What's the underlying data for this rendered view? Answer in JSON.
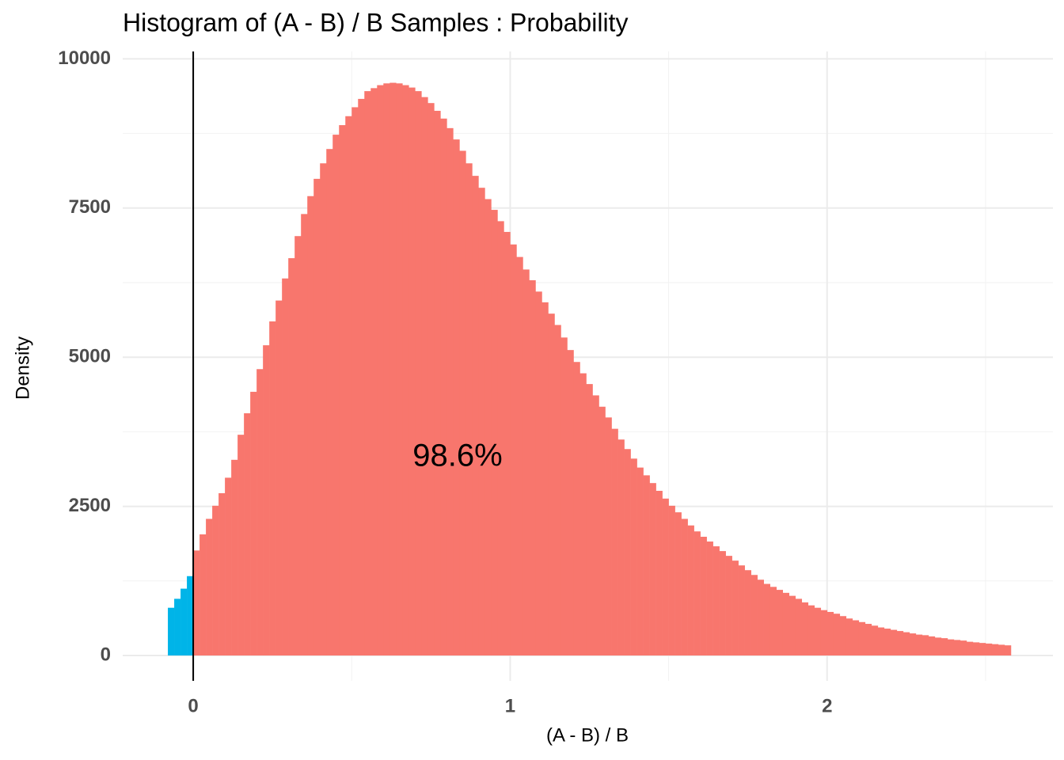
{
  "chart_data": {
    "type": "histogram",
    "title": "Histogram of (A - B) / B Samples : Probability",
    "xlabel": "(A - B) / B",
    "ylabel": "Density",
    "annotation": "98.6%",
    "series": [
      {
        "color": "#00b4e8",
        "bins": [
          -0.08,
          -0.06,
          -0.04,
          -0.02,
          0
        ],
        "values": [
          800,
          950,
          1120,
          1330
        ]
      },
      {
        "color": "#f8766d",
        "bins": [
          0,
          0.02,
          0.04,
          0.06,
          0.08,
          0.1,
          0.12,
          0.14,
          0.16,
          0.18,
          0.2,
          0.22,
          0.24,
          0.26,
          0.28,
          0.3,
          0.32,
          0.34,
          0.36,
          0.38,
          0.4,
          0.42,
          0.44,
          0.46,
          0.48,
          0.5,
          0.52,
          0.54,
          0.56,
          0.58,
          0.6,
          0.62,
          0.64,
          0.66,
          0.68,
          0.7,
          0.72,
          0.74,
          0.76,
          0.78,
          0.8,
          0.82,
          0.84,
          0.86,
          0.88,
          0.9,
          0.92,
          0.94,
          0.96,
          0.98,
          1,
          1.02,
          1.04,
          1.06,
          1.08,
          1.1,
          1.12,
          1.14,
          1.16,
          1.18,
          1.2,
          1.22,
          1.24,
          1.26,
          1.28,
          1.3,
          1.32,
          1.34,
          1.36,
          1.38,
          1.4,
          1.42,
          1.44,
          1.46,
          1.48,
          1.5,
          1.52,
          1.54,
          1.56,
          1.58,
          1.6,
          1.62,
          1.64,
          1.66,
          1.68,
          1.7,
          1.72,
          1.74,
          1.76,
          1.78,
          1.8,
          1.82,
          1.84,
          1.86,
          1.88,
          1.9,
          1.92,
          1.94,
          1.96,
          1.98,
          2,
          2.02,
          2.04,
          2.06,
          2.08,
          2.1,
          2.12,
          2.14,
          2.16,
          2.18,
          2.2,
          2.22,
          2.24,
          2.26,
          2.28,
          2.3,
          2.32,
          2.34,
          2.36,
          2.38,
          2.4,
          2.42,
          2.44,
          2.46,
          2.48,
          2.5,
          2.52,
          2.54,
          2.56,
          2.58
        ],
        "values": [
          1760,
          2030,
          2290,
          2510,
          2720,
          2980,
          3280,
          3700,
          4060,
          4420,
          4800,
          5200,
          5600,
          5950,
          6320,
          6660,
          7030,
          7400,
          7700,
          7990,
          8250,
          8490,
          8730,
          8890,
          9040,
          9190,
          9330,
          9460,
          9510,
          9560,
          9590,
          9600,
          9590,
          9560,
          9520,
          9460,
          9360,
          9260,
          9130,
          9000,
          8840,
          8650,
          8460,
          8250,
          8040,
          7840,
          7650,
          7470,
          7280,
          7100,
          6890,
          6680,
          6470,
          6290,
          6100,
          5920,
          5730,
          5540,
          5330,
          5120,
          4920,
          4730,
          4550,
          4360,
          4170,
          3990,
          3800,
          3620,
          3460,
          3300,
          3150,
          3020,
          2890,
          2760,
          2630,
          2510,
          2400,
          2290,
          2180,
          2080,
          1990,
          1910,
          1830,
          1750,
          1670,
          1590,
          1510,
          1430,
          1350,
          1270,
          1200,
          1150,
          1100,
          1050,
          1000,
          950,
          890,
          840,
          800,
          760,
          730,
          700,
          660,
          620,
          590,
          560,
          530,
          500,
          470,
          450,
          430,
          410,
          390,
          370,
          350,
          340,
          320,
          300,
          290,
          270,
          260,
          250,
          230,
          220,
          210,
          200,
          190,
          180,
          170
        ]
      }
    ],
    "vline": 0,
    "xlim": [
      -0.2225,
      2.7125
    ],
    "xticks": [
      0,
      1,
      2
    ],
    "xminor": [
      0.5,
      1.5,
      2.5
    ],
    "ylim": [
      -425,
      10125
    ],
    "yticks": [
      0,
      2500,
      5000,
      7500,
      10000
    ],
    "yminor": [
      1250,
      3750,
      6250,
      8750
    ],
    "grid": true
  }
}
